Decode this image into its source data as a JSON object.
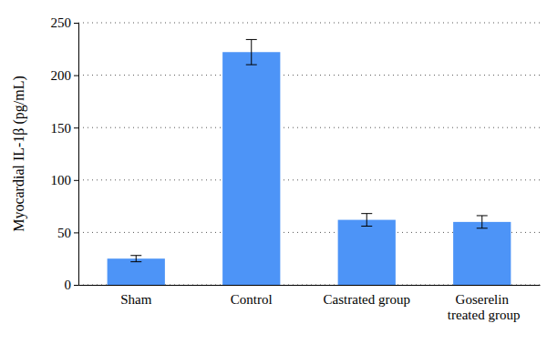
{
  "chart_data": {
    "type": "bar",
    "y_label": "Myocardial IL-1β (pg/mL)",
    "categories": [
      "Sham",
      "Control",
      "Castrated group",
      "Goserelin treated group"
    ],
    "values": [
      25,
      222,
      62,
      60
    ],
    "errors": [
      3,
      12,
      6,
      6
    ],
    "color": "#4d94f7",
    "ylim": [
      0,
      250
    ],
    "yticks": [
      0,
      50,
      100,
      150,
      200,
      250
    ],
    "grid": true
  }
}
